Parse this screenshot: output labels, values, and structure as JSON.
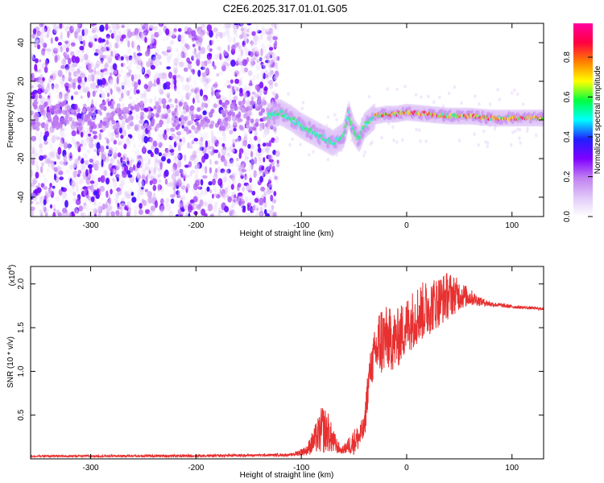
{
  "title": "C2E6.2025.317.01.01.G05",
  "chart_data": [
    {
      "type": "heatmap",
      "xlabel": "Height of straight line (km)",
      "ylabel": "Frequency (Hz)",
      "xlim": [
        -357,
        130
      ],
      "ylim": [
        -50,
        50
      ],
      "x_ticks": [
        -300,
        -200,
        -100,
        0,
        100
      ],
      "y_ticks": [
        -40,
        -20,
        0,
        20,
        40
      ],
      "colorbar": {
        "label": "Normalized spectral amplitude",
        "range": [
          0,
          0.97
        ],
        "ticks": [
          0.0,
          0.2,
          0.4,
          0.6,
          0.8
        ],
        "colormap": [
          "#ffffff",
          "#e0c8f8",
          "#c080f0",
          "#8000ff",
          "#2020ff",
          "#00ffff",
          "#00ff40",
          "#ffff00",
          "#ff8000",
          "#ff0040",
          "#ff00a0"
        ]
      },
      "ridge": {
        "name_hidden": true,
        "points": [
          [
            -130,
            2
          ],
          [
            -120,
            4
          ],
          [
            -110,
            1
          ],
          [
            -100,
            -3
          ],
          [
            -90,
            -6
          ],
          [
            -80,
            -9
          ],
          [
            -70,
            -12
          ],
          [
            -60,
            -8
          ],
          [
            -55,
            3
          ],
          [
            -50,
            -6
          ],
          [
            -45,
            -10
          ],
          [
            -40,
            -3
          ],
          [
            -30,
            2
          ],
          [
            -20,
            3
          ],
          [
            -10,
            3
          ],
          [
            0,
            4
          ],
          [
            20,
            3
          ],
          [
            40,
            2
          ],
          [
            60,
            2
          ],
          [
            80,
            1
          ],
          [
            100,
            1
          ],
          [
            130,
            1
          ]
        ]
      },
      "grid": false
    },
    {
      "type": "line",
      "xlabel": "Height of straight line (km)",
      "ylabel": "SNR (10 * v/v)",
      "y_multiplier": "(x10",
      "y_multiplier_exp": "4",
      "xlim": [
        -357,
        130
      ],
      "ylim": [
        0,
        2.2
      ],
      "x_ticks": [
        -300,
        -200,
        -100,
        0,
        100
      ],
      "y_ticks": [
        0.5,
        1.0,
        1.5,
        2.0
      ],
      "y_tick_labels": [
        "0.5",
        "1.0",
        "1.5",
        "2.0"
      ],
      "series": [
        {
          "color": "#e83030",
          "envelope": [
            [
              -357,
              0.02,
              0.04
            ],
            [
              -200,
              0.02,
              0.05
            ],
            [
              -110,
              0.03,
              0.06
            ],
            [
              -95,
              0.04,
              0.15
            ],
            [
              -85,
              0.06,
              0.45
            ],
            [
              -80,
              0.05,
              0.62
            ],
            [
              -75,
              0.08,
              0.55
            ],
            [
              -70,
              0.05,
              0.35
            ],
            [
              -62,
              0.06,
              0.12
            ],
            [
              -55,
              0.05,
              0.25
            ],
            [
              -50,
              0.05,
              0.35
            ],
            [
              -45,
              0.1,
              0.4
            ],
            [
              -40,
              0.2,
              0.5
            ],
            [
              -38,
              0.45,
              0.9
            ],
            [
              -35,
              0.8,
              1.2
            ],
            [
              -30,
              0.9,
              1.5
            ],
            [
              -25,
              0.9,
              1.8
            ],
            [
              -20,
              1.0,
              1.75
            ],
            [
              -10,
              1.0,
              1.7
            ],
            [
              0,
              1.2,
              1.85
            ],
            [
              10,
              1.3,
              2.0
            ],
            [
              20,
              1.4,
              2.05
            ],
            [
              30,
              1.5,
              2.1
            ],
            [
              40,
              1.6,
              2.15
            ],
            [
              50,
              1.7,
              2.05
            ],
            [
              60,
              1.75,
              1.95
            ],
            [
              70,
              1.75,
              1.85
            ],
            [
              80,
              1.74,
              1.8
            ],
            [
              100,
              1.72,
              1.76
            ],
            [
              130,
              1.7,
              1.73
            ]
          ]
        }
      ],
      "grid": false
    }
  ]
}
